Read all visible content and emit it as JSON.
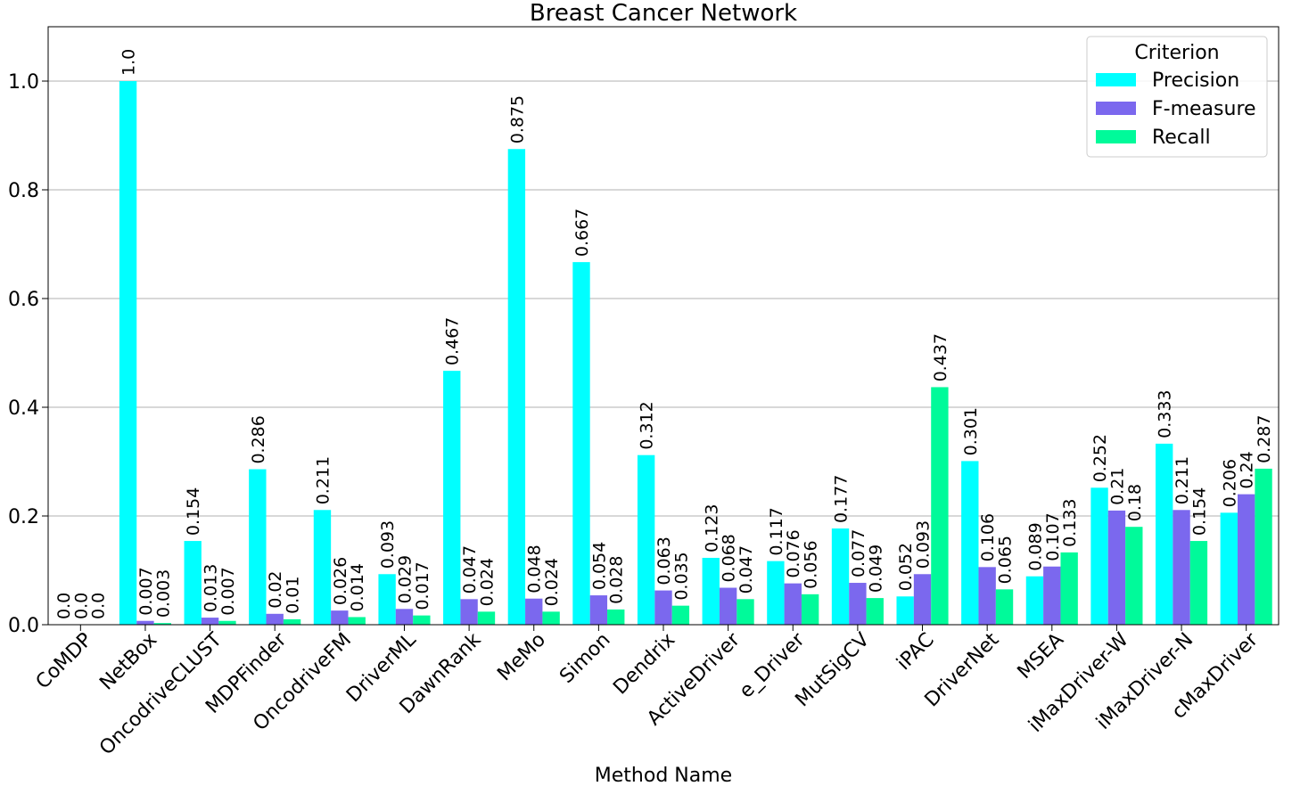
{
  "chart_data": {
    "type": "bar",
    "title": "Breast Cancer Network",
    "xlabel": "Method Name",
    "ylabel": "",
    "ylim": [
      0,
      1.1
    ],
    "yticks": [
      "0.0",
      "0.2",
      "0.4",
      "0.6",
      "0.8",
      "1.0"
    ],
    "grid": "horizontal",
    "legend": {
      "title": "Criterion",
      "placement": "top-right"
    },
    "categories": [
      "CoMDP",
      "NetBox",
      "OncodriveCLUST",
      "MDPFinder",
      "OncodriveFM",
      "DriverML",
      "DawnRank",
      "MeMo",
      "Simon",
      "Dendrix",
      "ActiveDriver",
      "e_Driver",
      "MutSigCV",
      "iPAC",
      "DriverNet",
      "MSEA",
      "iMaxDriver-W",
      "iMaxDriver-N",
      "cMaxDriver"
    ],
    "series": [
      {
        "name": "Precision",
        "color": "#00ffff",
        "values": [
          0.0,
          1.0,
          0.154,
          0.286,
          0.211,
          0.093,
          0.467,
          0.875,
          0.667,
          0.312,
          0.123,
          0.117,
          0.177,
          0.052,
          0.301,
          0.089,
          0.252,
          0.333,
          0.206
        ],
        "labels": [
          "0.0",
          "1.0",
          "0.154",
          "0.286",
          "0.211",
          "0.093",
          "0.467",
          "0.875",
          "0.667",
          "0.312",
          "0.123",
          "0.117",
          "0.177",
          "0.052",
          "0.301",
          "0.089",
          "0.252",
          "0.333",
          "0.206"
        ]
      },
      {
        "name": "F-measure",
        "color": "#7b68ee",
        "values": [
          0.0,
          0.007,
          0.013,
          0.02,
          0.026,
          0.029,
          0.047,
          0.048,
          0.054,
          0.063,
          0.068,
          0.076,
          0.077,
          0.093,
          0.106,
          0.107,
          0.21,
          0.211,
          0.24
        ],
        "labels": [
          "0.0",
          "0.007",
          "0.013",
          "0.02",
          "0.026",
          "0.029",
          "0.047",
          "0.048",
          "0.054",
          "0.063",
          "0.068",
          "0.076",
          "0.077",
          "0.093",
          "0.106",
          "0.107",
          "0.21",
          "0.211",
          "0.24"
        ]
      },
      {
        "name": "Recall",
        "color": "#00fa9a",
        "values": [
          0.0,
          0.003,
          0.007,
          0.01,
          0.014,
          0.017,
          0.024,
          0.024,
          0.028,
          0.035,
          0.047,
          0.056,
          0.049,
          0.437,
          0.065,
          0.133,
          0.18,
          0.154,
          0.287
        ],
        "labels": [
          "0.0",
          "0.003",
          "0.007",
          "0.01",
          "0.014",
          "0.017",
          "0.024",
          "0.024",
          "0.028",
          "0.035",
          "0.047",
          "0.056",
          "0.049",
          "0.437",
          "0.065",
          "0.133",
          "0.18",
          "0.154",
          "0.287"
        ]
      }
    ]
  }
}
